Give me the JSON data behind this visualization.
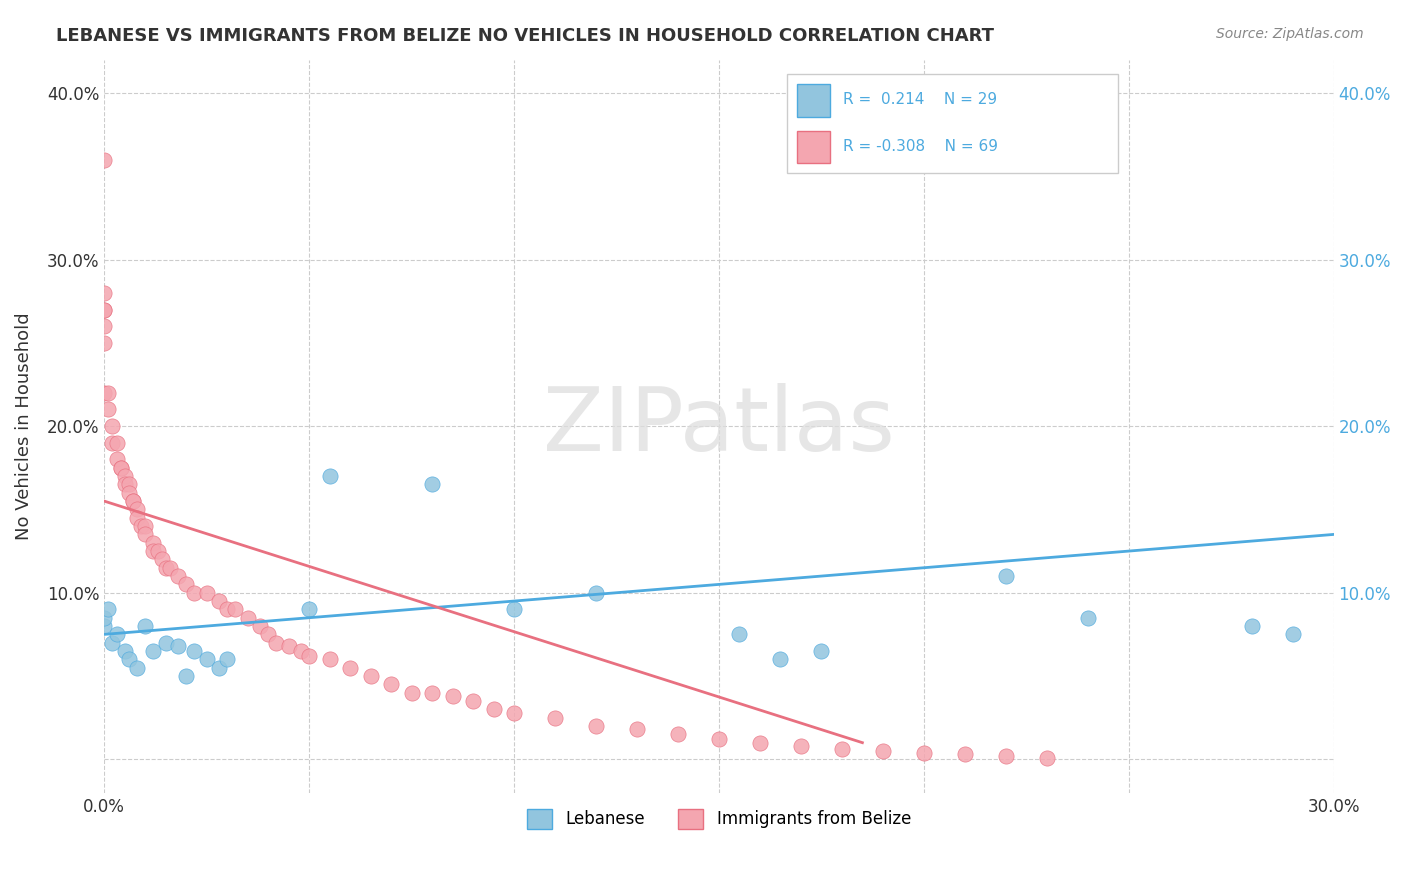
{
  "title": "LEBANESE VS IMMIGRANTS FROM BELIZE NO VEHICLES IN HOUSEHOLD CORRELATION CHART",
  "source_text": "Source: ZipAtlas.com",
  "xlabel": "",
  "ylabel": "No Vehicles in Household",
  "xlim": [
    0.0,
    0.3
  ],
  "ylim": [
    -0.02,
    0.42
  ],
  "xticks": [
    0.0,
    0.05,
    0.1,
    0.15,
    0.2,
    0.25,
    0.3
  ],
  "xticklabels": [
    "0.0%",
    "",
    "",
    "",
    "",
    "",
    "30.0%"
  ],
  "yticks": [
    0.0,
    0.1,
    0.2,
    0.3,
    0.4
  ],
  "yticklabels_left": [
    "",
    "10.0%",
    "20.0%",
    "30.0%",
    "40.0%"
  ],
  "yticklabels_right": [
    "",
    "10.0%",
    "20.0%",
    "30.0%",
    "40.0%"
  ],
  "legend_r1": "R =  0.214",
  "legend_n1": "N = 29",
  "legend_r2": "R = -0.308",
  "legend_n2": "N = 69",
  "color_blue": "#92C5DE",
  "color_pink": "#F4A6B0",
  "line_color_blue": "#4DAADF",
  "line_color_pink": "#E87080",
  "watermark_zip": "ZIP",
  "watermark_atlas": "atlas",
  "label_lebanese": "Lebanese",
  "label_belize": "Immigrants from Belize",
  "blue_scatter_x": [
    0.0,
    0.0,
    0.001,
    0.002,
    0.003,
    0.005,
    0.006,
    0.008,
    0.01,
    0.012,
    0.015,
    0.018,
    0.02,
    0.022,
    0.025,
    0.028,
    0.03,
    0.05,
    0.055,
    0.08,
    0.1,
    0.12,
    0.155,
    0.165,
    0.175,
    0.22,
    0.24,
    0.28,
    0.29
  ],
  "blue_scatter_y": [
    0.08,
    0.085,
    0.09,
    0.07,
    0.075,
    0.065,
    0.06,
    0.055,
    0.08,
    0.065,
    0.07,
    0.068,
    0.05,
    0.065,
    0.06,
    0.055,
    0.06,
    0.09,
    0.17,
    0.165,
    0.09,
    0.1,
    0.075,
    0.06,
    0.065,
    0.11,
    0.085,
    0.08,
    0.075
  ],
  "pink_scatter_x": [
    0.0,
    0.0,
    0.0,
    0.0,
    0.0,
    0.0,
    0.0,
    0.001,
    0.001,
    0.002,
    0.002,
    0.003,
    0.003,
    0.004,
    0.004,
    0.005,
    0.005,
    0.006,
    0.006,
    0.007,
    0.007,
    0.008,
    0.008,
    0.009,
    0.01,
    0.01,
    0.012,
    0.012,
    0.013,
    0.014,
    0.015,
    0.016,
    0.018,
    0.02,
    0.022,
    0.025,
    0.028,
    0.03,
    0.032,
    0.035,
    0.038,
    0.04,
    0.042,
    0.045,
    0.048,
    0.05,
    0.055,
    0.06,
    0.065,
    0.07,
    0.075,
    0.08,
    0.085,
    0.09,
    0.095,
    0.1,
    0.11,
    0.12,
    0.13,
    0.14,
    0.15,
    0.16,
    0.17,
    0.18,
    0.19,
    0.2,
    0.21,
    0.22,
    0.23
  ],
  "pink_scatter_y": [
    0.36,
    0.28,
    0.27,
    0.27,
    0.26,
    0.25,
    0.22,
    0.22,
    0.21,
    0.2,
    0.19,
    0.19,
    0.18,
    0.175,
    0.175,
    0.17,
    0.165,
    0.165,
    0.16,
    0.155,
    0.155,
    0.15,
    0.145,
    0.14,
    0.14,
    0.135,
    0.13,
    0.125,
    0.125,
    0.12,
    0.115,
    0.115,
    0.11,
    0.105,
    0.1,
    0.1,
    0.095,
    0.09,
    0.09,
    0.085,
    0.08,
    0.075,
    0.07,
    0.068,
    0.065,
    0.062,
    0.06,
    0.055,
    0.05,
    0.045,
    0.04,
    0.04,
    0.038,
    0.035,
    0.03,
    0.028,
    0.025,
    0.02,
    0.018,
    0.015,
    0.012,
    0.01,
    0.008,
    0.006,
    0.005,
    0.004,
    0.003,
    0.002,
    0.001
  ],
  "blue_line_x": [
    0.0,
    0.3
  ],
  "blue_line_y": [
    0.075,
    0.135
  ],
  "pink_line_x": [
    0.0,
    0.185
  ],
  "pink_line_y": [
    0.155,
    0.01
  ]
}
